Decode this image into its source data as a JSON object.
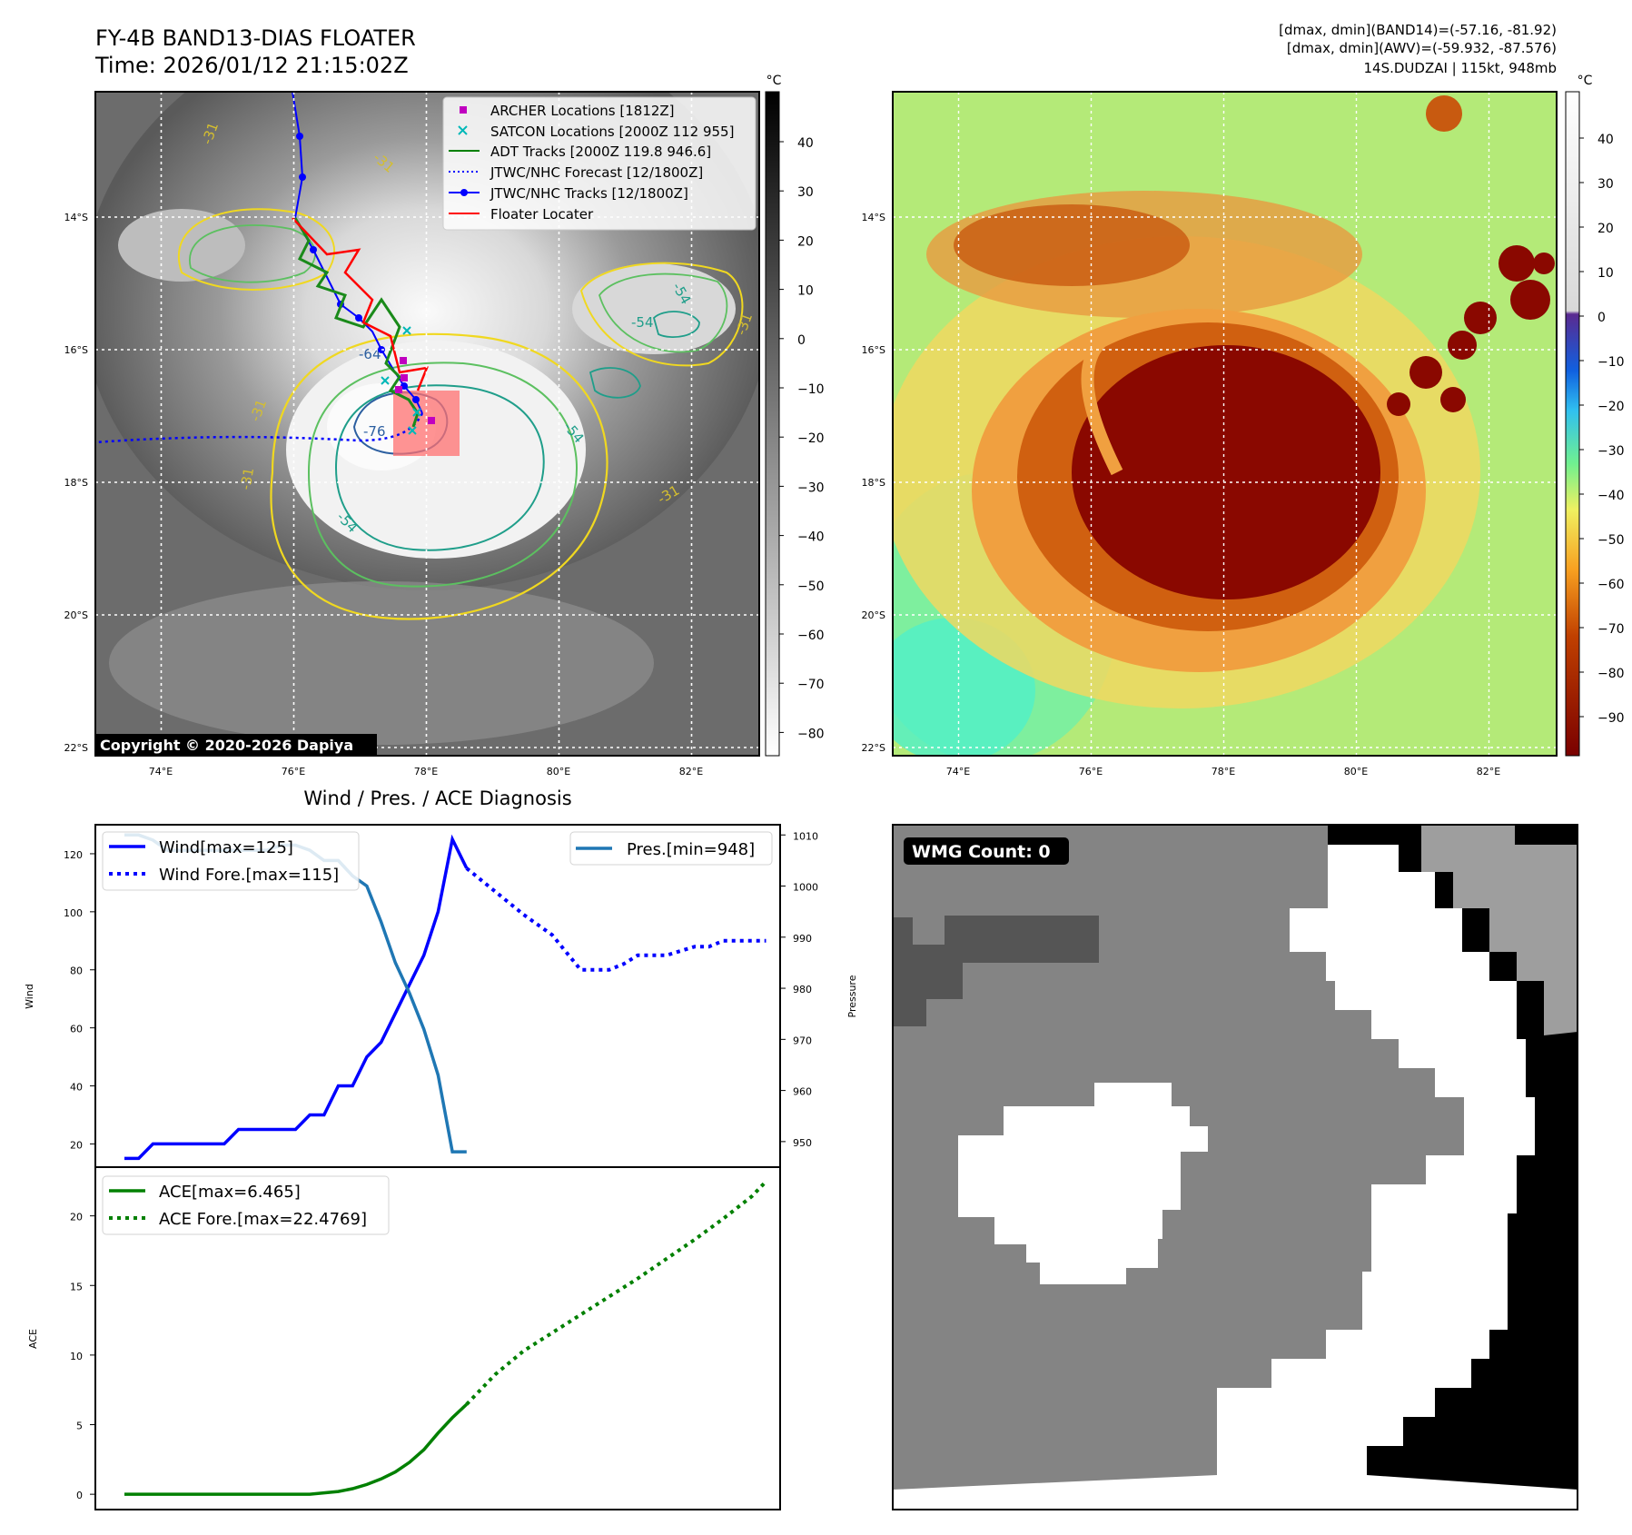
{
  "header": {
    "title": "FY-4B BAND13-DIAS FLOATER",
    "time": "Time: 2026/01/12 21:15:02Z",
    "info_line1": "[dmax, dmin](BAND14)=(-57.16, -81.92)",
    "info_line2": "[dmax, dmin](AWV)=(-59.932, -87.576)",
    "info_line3": "14S.DUDZAI | 115kt, 948mb"
  },
  "map": {
    "lat_labels": [
      "14°S",
      "16°S",
      "18°S",
      "20°S",
      "22°S"
    ],
    "lon_labels": [
      "74°E",
      "76°E",
      "78°E",
      "80°E",
      "82°E"
    ],
    "copyright": "Copyright © 2020-2026 Dapiya",
    "contour_labels": [
      "-31",
      "-31",
      "-54",
      "-54",
      "-64",
      "-76",
      "-31",
      "-54",
      "-31",
      "-54",
      "-31",
      "-31"
    ],
    "legend": [
      {
        "label": "ARCHER Locations [1812Z]",
        "color": "#c000c0",
        "kind": "square"
      },
      {
        "label": "SATCON Locations [2000Z 112 955]",
        "color": "#00b8b8",
        "kind": "x"
      },
      {
        "label": "ADT Tracks [2000Z 119.8 946.6]",
        "color": "#008000",
        "kind": "line"
      },
      {
        "label": "JTWC/NHC Forecast [12/1800Z]",
        "color": "#0000ff",
        "kind": "dotted"
      },
      {
        "label": "JTWC/NHC Tracks [12/1800Z]",
        "color": "#0000ff",
        "kind": "linedot"
      },
      {
        "label": "Floater Locater",
        "color": "#ff0000",
        "kind": "line"
      }
    ]
  },
  "colorbar_gray": {
    "unit": "°C",
    "ticks": [
      "40",
      "30",
      "20",
      "10",
      "0",
      "−10",
      "−20",
      "−30",
      "−40",
      "−50",
      "−60",
      "−70",
      "−80"
    ]
  },
  "colorbar_color": {
    "unit": "°C",
    "ticks": [
      "40",
      "30",
      "20",
      "10",
      "0",
      "−10",
      "−20",
      "−30",
      "−40",
      "−50",
      "−60",
      "−70",
      "−80",
      "−90"
    ]
  },
  "wmg": {
    "label": "WMG Count: 0"
  },
  "colors": {
    "wind": "#0000ff",
    "pressure": "#1f77b4",
    "ace": "#008000"
  },
  "chart_data": [
    {
      "type": "line",
      "title": "Wind / Pres. / ACE Diagnosis",
      "ylabel": "Wind",
      "ylabel_right": "Pressure",
      "ylim": [
        12,
        130
      ],
      "ylim_right": [
        945,
        1012
      ],
      "yticks": [
        20,
        40,
        60,
        80,
        100,
        120
      ],
      "yticks_right": [
        950,
        960,
        970,
        980,
        990,
        1000,
        1010
      ],
      "xlim": [
        0,
        46
      ],
      "series": [
        {
          "name": "Wind[max=125]",
          "style": "solid",
          "axis": "left",
          "x": [
            0,
            1,
            2,
            3,
            4,
            5,
            6,
            7,
            8,
            9,
            10,
            11,
            12,
            13,
            14,
            15,
            16,
            17,
            18,
            19,
            20,
            21,
            22,
            23,
            24
          ],
          "values": [
            15,
            15,
            20,
            20,
            20,
            20,
            20,
            20,
            25,
            25,
            25,
            25,
            25,
            30,
            30,
            40,
            40,
            50,
            55,
            65,
            75,
            85,
            100,
            125,
            115
          ]
        },
        {
          "name": "Wind Fore.[max=115]",
          "style": "dotted",
          "axis": "left",
          "x": [
            24,
            26,
            28,
            30,
            31,
            32,
            33,
            34,
            35,
            36,
            38,
            40,
            41,
            42,
            43,
            44,
            45
          ],
          "values": [
            115,
            107,
            99,
            92,
            86,
            80,
            80,
            80,
            82,
            85,
            85,
            88,
            88,
            90,
            90,
            90,
            90
          ]
        },
        {
          "name": "Pres.[min=948]",
          "style": "solid",
          "axis": "right",
          "x": [
            0,
            1,
            2,
            3,
            4,
            5,
            6,
            7,
            8,
            9,
            10,
            11,
            12,
            13,
            14,
            15,
            16,
            17,
            18,
            19,
            20,
            21,
            22,
            23,
            24
          ],
          "values": [
            1010,
            1010,
            1009,
            1007,
            1007,
            1007,
            1007,
            1007,
            1007,
            1007,
            1007,
            1008,
            1008,
            1007,
            1005,
            1005,
            1002,
            1000,
            993,
            985,
            979,
            972,
            963,
            948,
            948
          ]
        }
      ],
      "legend_entries": [
        "Wind[max=125]",
        "Wind Fore.[max=115]",
        "Pres.[min=948]"
      ]
    },
    {
      "type": "line",
      "ylabel": "ACE",
      "ylim": [
        -1.1,
        23.5
      ],
      "yticks": [
        0,
        5,
        10,
        15,
        20
      ],
      "xlim": [
        0,
        46
      ],
      "series": [
        {
          "name": "ACE[max=6.465]",
          "style": "solid",
          "x": [
            0,
            2,
            4,
            6,
            8,
            10,
            12,
            13,
            14,
            15,
            16,
            17,
            18,
            19,
            20,
            21,
            22,
            23,
            24
          ],
          "values": [
            0,
            0,
            0,
            0,
            0,
            0,
            0,
            0,
            0.1,
            0.2,
            0.4,
            0.7,
            1.1,
            1.6,
            2.3,
            3.2,
            4.4,
            5.5,
            6.465
          ]
        },
        {
          "name": "ACE Fore.[max=22.4769]",
          "style": "dotted",
          "x": [
            24,
            26,
            28,
            30,
            32,
            34,
            36,
            38,
            40,
            42,
            44,
            45
          ],
          "values": [
            6.465,
            8.6,
            10.3,
            11.6,
            12.9,
            14.2,
            15.5,
            16.9,
            18.3,
            19.8,
            21.4,
            22.4769
          ]
        }
      ],
      "legend_entries": [
        "ACE[max=6.465]",
        "ACE Fore.[max=22.4769]"
      ]
    }
  ]
}
